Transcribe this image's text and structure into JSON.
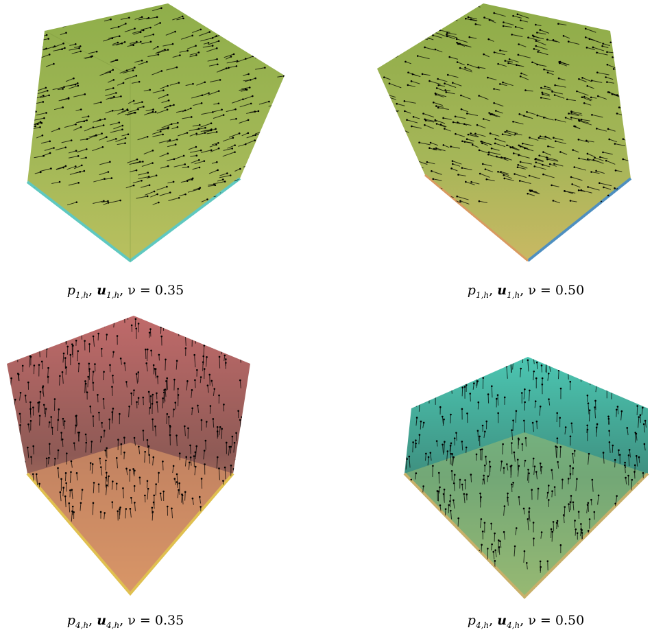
{
  "panels": [
    {
      "caption": [
        "p",
        "1,h",
        ", ",
        "u",
        "1,h",
        ", ν = 0.35"
      ]
    },
    {
      "caption": [
        "p",
        "1,h",
        ", ",
        "u",
        "1,h",
        ", ν = 0.50"
      ]
    },
    {
      "caption": [
        "p",
        "4,h",
        ", ",
        "u",
        "4,h",
        ", ν = 0.35"
      ]
    },
    {
      "caption": [
        "p",
        "4,h",
        ", ",
        "u",
        "4,h",
        ", ν = 0.50"
      ]
    }
  ]
}
